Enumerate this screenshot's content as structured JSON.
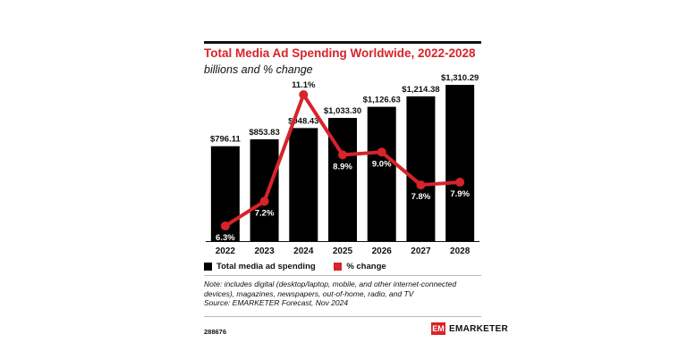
{
  "title": "Total Media Ad Spending Worldwide, 2022-2028",
  "subtitle": "billions and % change",
  "chart_data": {
    "type": "bar",
    "categories": [
      "2022",
      "2023",
      "2024",
      "2025",
      "2026",
      "2027",
      "2028"
    ],
    "series": [
      {
        "name": "Total media ad spending",
        "type": "bar",
        "values": [
          796.11,
          853.83,
          948.43,
          1033.3,
          1126.63,
          1214.38,
          1310.29
        ],
        "labels": [
          "$796.11",
          "$853.83",
          "$948.43",
          "$1,033.30",
          "$1,126.63",
          "$1,214.38",
          "$1,310.29"
        ],
        "color": "#000000"
      },
      {
        "name": "% change",
        "type": "line",
        "values": [
          6.3,
          7.2,
          11.1,
          8.9,
          9.0,
          7.8,
          7.9
        ],
        "labels": [
          "6.3%",
          "7.2%",
          "11.1%",
          "8.9%",
          "9.0%",
          "7.8%",
          "7.9%"
        ],
        "color": "#d8232a"
      }
    ],
    "legend_position": "bottom-left",
    "grid": false
  },
  "legend": {
    "bar_label": "Total media ad spending",
    "line_label": "% change"
  },
  "note": "Note: includes digital (desktop/laptop, mobile, and other internet-connected devices), magazines, newspapers, out-of-home, radio, and TV",
  "source": "Source: EMARKETER Forecast, Nov 2024",
  "chart_id": "288676",
  "brand": {
    "mark": "EM",
    "name": "EMARKETER",
    "accent": "#d8232a"
  }
}
